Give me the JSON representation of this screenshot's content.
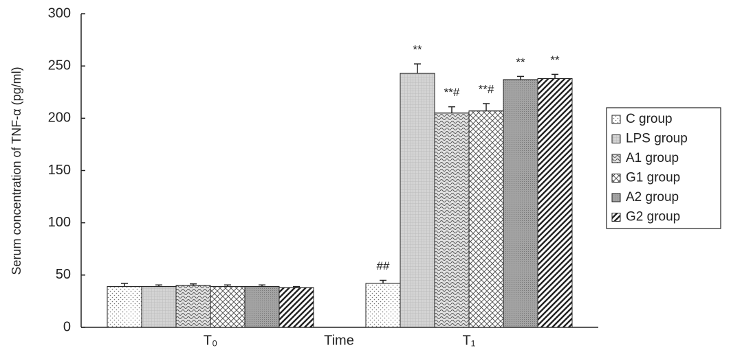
{
  "chart_data": {
    "type": "bar",
    "y_label": "Serum concentration of TNF-α (pg/ml)",
    "x_label": "Time",
    "categories": [
      "T₀",
      "T₁"
    ],
    "ylim": [
      0,
      300
    ],
    "yticks": [
      0,
      50,
      100,
      150,
      200,
      250,
      300
    ],
    "legend": "right",
    "series": [
      {
        "name": "C group",
        "color": "#ffffff",
        "pattern": "dots",
        "values": [
          39,
          42
        ],
        "errors": [
          3,
          3
        ],
        "annotations": [
          null,
          "##"
        ]
      },
      {
        "name": "LPS group",
        "color": "#d4d4d4",
        "pattern": "grid",
        "values": [
          39,
          243
        ],
        "errors": [
          1.5,
          9
        ],
        "annotations": [
          null,
          "**"
        ]
      },
      {
        "name": "A1 group",
        "color": "#e2e2e2",
        "pattern": "waves",
        "values": [
          40,
          205
        ],
        "errors": [
          1.5,
          6
        ],
        "annotations": [
          null,
          "**#"
        ]
      },
      {
        "name": "G1 group",
        "color": "#ffffff",
        "pattern": "diamonds",
        "values": [
          39,
          207
        ],
        "errors": [
          1.5,
          7
        ],
        "annotations": [
          null,
          "**#"
        ]
      },
      {
        "name": "A2 group",
        "color": "#a3a3a3",
        "pattern": "dense",
        "values": [
          39,
          237
        ],
        "errors": [
          1.5,
          3
        ],
        "annotations": [
          null,
          "**"
        ]
      },
      {
        "name": "G2 group",
        "color": "#ffffff",
        "pattern": "diagonal",
        "values": [
          38,
          238
        ],
        "errors": [
          1,
          4
        ],
        "annotations": [
          null,
          "**"
        ]
      }
    ]
  }
}
